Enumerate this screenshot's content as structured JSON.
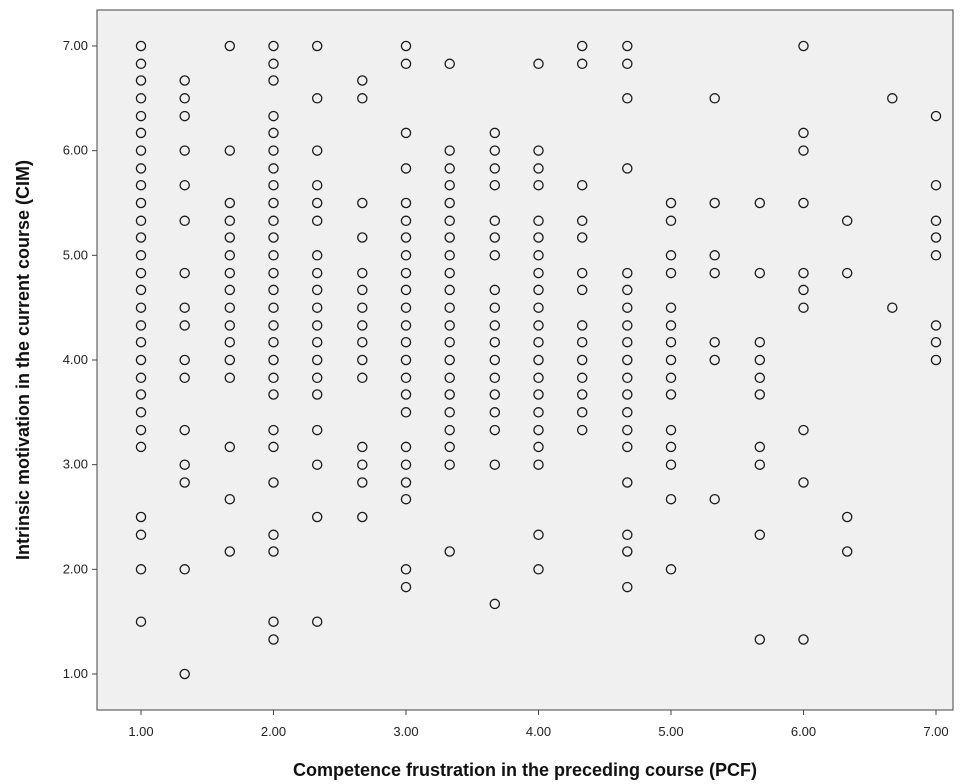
{
  "colors": {
    "plot_background": "#f0f0f0",
    "marker_stroke": "#1a1a1a",
    "axis": "#444444",
    "page_background": "#ffffff"
  },
  "chart_data": {
    "type": "scatter",
    "title": "",
    "xlabel": "Competence frustration in the preceding course (PCF)",
    "ylabel": "Intrinsic motivation in the current course (CIM)",
    "xlim": [
      0.67,
      7.2
    ],
    "ylim": [
      0.72,
      7.33
    ],
    "grid": false,
    "legend": "none",
    "marker": "hollow-circle",
    "x_ticks": [
      "1.00",
      "2.00",
      "3.00",
      "4.00",
      "5.00",
      "6.00",
      "7.00"
    ],
    "y_ticks": [
      "1.00",
      "2.00",
      "3.00",
      "4.00",
      "5.00",
      "6.00",
      "7.00"
    ],
    "points": [
      [
        1.0,
        7.0
      ],
      [
        1.0,
        6.83
      ],
      [
        1.0,
        6.67
      ],
      [
        1.0,
        6.5
      ],
      [
        1.0,
        6.33
      ],
      [
        1.0,
        6.17
      ],
      [
        1.0,
        6.0
      ],
      [
        1.0,
        5.83
      ],
      [
        1.0,
        5.67
      ],
      [
        1.0,
        5.5
      ],
      [
        1.0,
        5.33
      ],
      [
        1.0,
        5.17
      ],
      [
        1.0,
        5.0
      ],
      [
        1.0,
        4.83
      ],
      [
        1.0,
        4.67
      ],
      [
        1.0,
        4.5
      ],
      [
        1.0,
        4.33
      ],
      [
        1.0,
        4.17
      ],
      [
        1.0,
        4.0
      ],
      [
        1.0,
        3.83
      ],
      [
        1.0,
        3.67
      ],
      [
        1.0,
        3.5
      ],
      [
        1.0,
        3.33
      ],
      [
        1.0,
        3.17
      ],
      [
        1.0,
        2.5
      ],
      [
        1.0,
        2.33
      ],
      [
        1.0,
        2.0
      ],
      [
        1.0,
        1.5
      ],
      [
        1.33,
        6.67
      ],
      [
        1.33,
        6.5
      ],
      [
        1.33,
        6.33
      ],
      [
        1.33,
        6.0
      ],
      [
        1.33,
        5.67
      ],
      [
        1.33,
        5.33
      ],
      [
        1.33,
        4.83
      ],
      [
        1.33,
        4.5
      ],
      [
        1.33,
        4.33
      ],
      [
        1.33,
        4.0
      ],
      [
        1.33,
        3.83
      ],
      [
        1.33,
        3.33
      ],
      [
        1.33,
        3.0
      ],
      [
        1.33,
        2.83
      ],
      [
        1.33,
        2.0
      ],
      [
        1.33,
        1.0
      ],
      [
        1.67,
        7.0
      ],
      [
        1.67,
        6.0
      ],
      [
        1.67,
        5.5
      ],
      [
        1.67,
        5.33
      ],
      [
        1.67,
        5.17
      ],
      [
        1.67,
        5.0
      ],
      [
        1.67,
        4.83
      ],
      [
        1.67,
        4.67
      ],
      [
        1.67,
        4.5
      ],
      [
        1.67,
        4.33
      ],
      [
        1.67,
        4.17
      ],
      [
        1.67,
        4.0
      ],
      [
        1.67,
        3.83
      ],
      [
        1.67,
        3.17
      ],
      [
        1.67,
        2.67
      ],
      [
        1.67,
        2.17
      ],
      [
        2.0,
        7.0
      ],
      [
        2.0,
        6.83
      ],
      [
        2.0,
        6.67
      ],
      [
        2.0,
        6.33
      ],
      [
        2.0,
        6.17
      ],
      [
        2.0,
        6.0
      ],
      [
        2.0,
        5.83
      ],
      [
        2.0,
        5.67
      ],
      [
        2.0,
        5.5
      ],
      [
        2.0,
        5.33
      ],
      [
        2.0,
        5.17
      ],
      [
        2.0,
        5.0
      ],
      [
        2.0,
        4.83
      ],
      [
        2.0,
        4.67
      ],
      [
        2.0,
        4.5
      ],
      [
        2.0,
        4.33
      ],
      [
        2.0,
        4.17
      ],
      [
        2.0,
        4.0
      ],
      [
        2.0,
        3.83
      ],
      [
        2.0,
        3.67
      ],
      [
        2.0,
        3.33
      ],
      [
        2.0,
        3.17
      ],
      [
        2.0,
        2.83
      ],
      [
        2.0,
        2.33
      ],
      [
        2.0,
        2.17
      ],
      [
        2.0,
        1.5
      ],
      [
        2.0,
        1.33
      ],
      [
        2.33,
        7.0
      ],
      [
        2.33,
        6.5
      ],
      [
        2.33,
        6.0
      ],
      [
        2.33,
        5.67
      ],
      [
        2.33,
        5.5
      ],
      [
        2.33,
        5.33
      ],
      [
        2.33,
        5.0
      ],
      [
        2.33,
        4.83
      ],
      [
        2.33,
        4.67
      ],
      [
        2.33,
        4.5
      ],
      [
        2.33,
        4.33
      ],
      [
        2.33,
        4.17
      ],
      [
        2.33,
        4.0
      ],
      [
        2.33,
        3.83
      ],
      [
        2.33,
        3.67
      ],
      [
        2.33,
        3.33
      ],
      [
        2.33,
        3.0
      ],
      [
        2.33,
        2.5
      ],
      [
        2.33,
        1.5
      ],
      [
        2.67,
        6.67
      ],
      [
        2.67,
        6.5
      ],
      [
        2.67,
        5.5
      ],
      [
        2.67,
        5.17
      ],
      [
        2.67,
        4.83
      ],
      [
        2.67,
        4.67
      ],
      [
        2.67,
        4.5
      ],
      [
        2.67,
        4.33
      ],
      [
        2.67,
        4.17
      ],
      [
        2.67,
        4.0
      ],
      [
        2.67,
        3.83
      ],
      [
        2.67,
        3.17
      ],
      [
        2.67,
        3.0
      ],
      [
        2.67,
        2.83
      ],
      [
        2.67,
        2.5
      ],
      [
        3.0,
        7.0
      ],
      [
        3.0,
        6.83
      ],
      [
        3.0,
        6.17
      ],
      [
        3.0,
        5.83
      ],
      [
        3.0,
        5.5
      ],
      [
        3.0,
        5.33
      ],
      [
        3.0,
        5.17
      ],
      [
        3.0,
        5.0
      ],
      [
        3.0,
        4.83
      ],
      [
        3.0,
        4.67
      ],
      [
        3.0,
        4.5
      ],
      [
        3.0,
        4.33
      ],
      [
        3.0,
        4.17
      ],
      [
        3.0,
        4.0
      ],
      [
        3.0,
        3.83
      ],
      [
        3.0,
        3.67
      ],
      [
        3.0,
        3.5
      ],
      [
        3.0,
        3.17
      ],
      [
        3.0,
        3.0
      ],
      [
        3.0,
        2.83
      ],
      [
        3.0,
        2.67
      ],
      [
        3.0,
        2.0
      ],
      [
        3.0,
        1.83
      ],
      [
        3.33,
        6.83
      ],
      [
        3.33,
        6.0
      ],
      [
        3.33,
        5.83
      ],
      [
        3.33,
        5.67
      ],
      [
        3.33,
        5.5
      ],
      [
        3.33,
        5.33
      ],
      [
        3.33,
        5.17
      ],
      [
        3.33,
        5.0
      ],
      [
        3.33,
        4.83
      ],
      [
        3.33,
        4.67
      ],
      [
        3.33,
        4.5
      ],
      [
        3.33,
        4.33
      ],
      [
        3.33,
        4.17
      ],
      [
        3.33,
        4.0
      ],
      [
        3.33,
        3.83
      ],
      [
        3.33,
        3.67
      ],
      [
        3.33,
        3.5
      ],
      [
        3.33,
        3.33
      ],
      [
        3.33,
        3.17
      ],
      [
        3.33,
        3.0
      ],
      [
        3.33,
        2.17
      ],
      [
        3.67,
        6.17
      ],
      [
        3.67,
        6.0
      ],
      [
        3.67,
        5.83
      ],
      [
        3.67,
        5.67
      ],
      [
        3.67,
        5.33
      ],
      [
        3.67,
        5.17
      ],
      [
        3.67,
        5.0
      ],
      [
        3.67,
        4.67
      ],
      [
        3.67,
        4.5
      ],
      [
        3.67,
        4.33
      ],
      [
        3.67,
        4.17
      ],
      [
        3.67,
        4.0
      ],
      [
        3.67,
        3.83
      ],
      [
        3.67,
        3.67
      ],
      [
        3.67,
        3.5
      ],
      [
        3.67,
        3.33
      ],
      [
        3.67,
        3.0
      ],
      [
        3.67,
        1.67
      ],
      [
        4.0,
        6.83
      ],
      [
        4.0,
        6.0
      ],
      [
        4.0,
        5.83
      ],
      [
        4.0,
        5.67
      ],
      [
        4.0,
        5.33
      ],
      [
        4.0,
        5.17
      ],
      [
        4.0,
        5.0
      ],
      [
        4.0,
        4.83
      ],
      [
        4.0,
        4.67
      ],
      [
        4.0,
        4.5
      ],
      [
        4.0,
        4.33
      ],
      [
        4.0,
        4.17
      ],
      [
        4.0,
        4.0
      ],
      [
        4.0,
        3.83
      ],
      [
        4.0,
        3.67
      ],
      [
        4.0,
        3.5
      ],
      [
        4.0,
        3.33
      ],
      [
        4.0,
        3.17
      ],
      [
        4.0,
        3.0
      ],
      [
        4.0,
        2.33
      ],
      [
        4.0,
        2.0
      ],
      [
        4.33,
        7.0
      ],
      [
        4.33,
        6.83
      ],
      [
        4.33,
        5.67
      ],
      [
        4.33,
        5.33
      ],
      [
        4.33,
        5.17
      ],
      [
        4.33,
        4.83
      ],
      [
        4.33,
        4.67
      ],
      [
        4.33,
        4.33
      ],
      [
        4.33,
        4.17
      ],
      [
        4.33,
        4.0
      ],
      [
        4.33,
        3.83
      ],
      [
        4.33,
        3.67
      ],
      [
        4.33,
        3.5
      ],
      [
        4.33,
        3.33
      ],
      [
        4.67,
        7.0
      ],
      [
        4.67,
        6.83
      ],
      [
        4.67,
        6.5
      ],
      [
        4.67,
        5.83
      ],
      [
        4.67,
        4.83
      ],
      [
        4.67,
        4.67
      ],
      [
        4.67,
        4.5
      ],
      [
        4.67,
        4.33
      ],
      [
        4.67,
        4.17
      ],
      [
        4.67,
        4.0
      ],
      [
        4.67,
        3.83
      ],
      [
        4.67,
        3.67
      ],
      [
        4.67,
        3.5
      ],
      [
        4.67,
        3.33
      ],
      [
        4.67,
        3.17
      ],
      [
        4.67,
        2.83
      ],
      [
        4.67,
        2.33
      ],
      [
        4.67,
        2.17
      ],
      [
        4.67,
        1.83
      ],
      [
        5.0,
        5.5
      ],
      [
        5.0,
        5.33
      ],
      [
        5.0,
        5.0
      ],
      [
        5.0,
        4.83
      ],
      [
        5.0,
        4.5
      ],
      [
        5.0,
        4.33
      ],
      [
        5.0,
        4.17
      ],
      [
        5.0,
        4.0
      ],
      [
        5.0,
        3.83
      ],
      [
        5.0,
        3.67
      ],
      [
        5.0,
        3.33
      ],
      [
        5.0,
        3.17
      ],
      [
        5.0,
        3.0
      ],
      [
        5.0,
        2.67
      ],
      [
        5.0,
        2.0
      ],
      [
        5.33,
        6.5
      ],
      [
        5.33,
        5.5
      ],
      [
        5.33,
        5.0
      ],
      [
        5.33,
        4.83
      ],
      [
        5.33,
        4.17
      ],
      [
        5.33,
        4.0
      ],
      [
        5.33,
        2.67
      ],
      [
        5.67,
        5.5
      ],
      [
        5.67,
        4.83
      ],
      [
        5.67,
        4.17
      ],
      [
        5.67,
        4.0
      ],
      [
        5.67,
        3.83
      ],
      [
        5.67,
        3.67
      ],
      [
        5.67,
        3.17
      ],
      [
        5.67,
        3.0
      ],
      [
        5.67,
        2.33
      ],
      [
        5.67,
        1.33
      ],
      [
        6.0,
        7.0
      ],
      [
        6.0,
        6.17
      ],
      [
        6.0,
        6.0
      ],
      [
        6.0,
        5.5
      ],
      [
        6.0,
        4.83
      ],
      [
        6.0,
        4.67
      ],
      [
        6.0,
        4.5
      ],
      [
        6.0,
        3.33
      ],
      [
        6.0,
        2.83
      ],
      [
        6.0,
        1.33
      ],
      [
        6.33,
        5.33
      ],
      [
        6.33,
        4.83
      ],
      [
        6.33,
        2.5
      ],
      [
        6.33,
        2.17
      ],
      [
        6.67,
        6.5
      ],
      [
        6.67,
        4.5
      ],
      [
        7.0,
        6.33
      ],
      [
        7.0,
        5.67
      ],
      [
        7.0,
        5.33
      ],
      [
        7.0,
        5.17
      ],
      [
        7.0,
        5.0
      ],
      [
        7.0,
        4.33
      ],
      [
        7.0,
        4.17
      ],
      [
        7.0,
        4.0
      ]
    ]
  }
}
